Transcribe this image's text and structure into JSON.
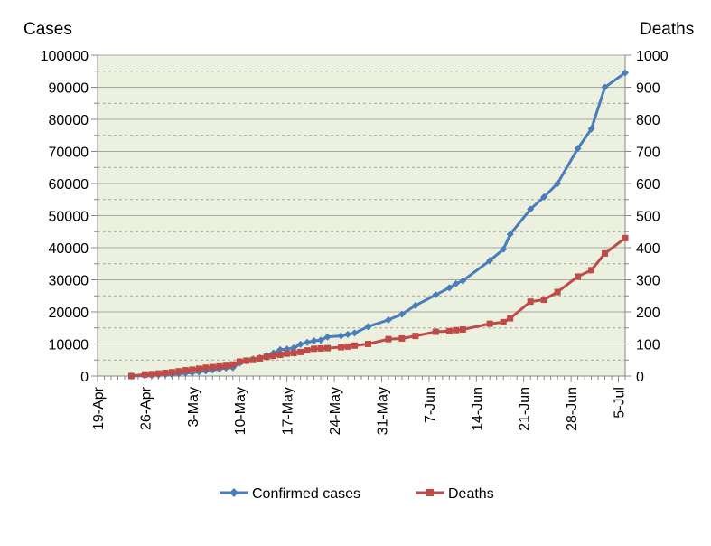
{
  "chart_data": {
    "type": "line",
    "left_axis_title": "Cases",
    "right_axis_title": "Deaths",
    "left_ylim": [
      0,
      100000
    ],
    "right_ylim": [
      0,
      1000
    ],
    "xlim": [
      "19-Apr",
      "6-Jul"
    ],
    "x_tick_labels": [
      "19-Apr",
      "26-Apr",
      "3-May",
      "10-May",
      "17-May",
      "24-May",
      "31-May",
      "7-Jun",
      "14-Jun",
      "21-Jun",
      "28-Jun",
      "5-Jul"
    ],
    "left_tick_labels": [
      "0",
      "10000",
      "20000",
      "30000",
      "40000",
      "50000",
      "60000",
      "70000",
      "80000",
      "90000",
      "100000"
    ],
    "right_tick_labels": [
      "0",
      "100",
      "200",
      "300",
      "400",
      "500",
      "600",
      "700",
      "800",
      "900",
      "1000"
    ],
    "grid": true,
    "legend_position": "bottom",
    "plot_background": "#ebf1de",
    "x": [
      "24-Apr",
      "26-Apr",
      "27-Apr",
      "28-Apr",
      "29-Apr",
      "30-Apr",
      "1-May",
      "2-May",
      "3-May",
      "4-May",
      "5-May",
      "6-May",
      "7-May",
      "8-May",
      "9-May",
      "10-May",
      "11-May",
      "12-May",
      "13-May",
      "14-May",
      "15-May",
      "16-May",
      "17-May",
      "18-May",
      "19-May",
      "20-May",
      "21-May",
      "22-May",
      "23-May",
      "25-May",
      "26-May",
      "27-May",
      "29-May",
      "1-Jun",
      "3-Jun",
      "5-Jun",
      "8-Jun",
      "10-Jun",
      "11-Jun",
      "12-Jun",
      "16-Jun",
      "18-Jun",
      "19-Jun",
      "22-Jun",
      "24-Jun",
      "26-Jun",
      "29-Jun",
      "1-Jul",
      "3-Jul",
      "6-Jul"
    ],
    "series": [
      {
        "name": "Confirmed cases",
        "axis": "left",
        "color": "#4a7ebb",
        "marker": "diamond",
        "values": [
          0,
          100,
          200,
          300,
          400,
          500,
          700,
          900,
          1100,
          1300,
          1600,
          1900,
          2200,
          2500,
          2600,
          4000,
          4800,
          5300,
          5700,
          6400,
          7200,
          8200,
          8400,
          8800,
          9900,
          10500,
          11000,
          11200,
          12200,
          12500,
          13000,
          13400,
          15400,
          17500,
          19300,
          22000,
          25300,
          27500,
          28800,
          29700,
          36000,
          39500,
          44200,
          52000,
          55800,
          60000,
          70900,
          77000,
          90000,
          94500
        ]
      },
      {
        "name": "Deaths",
        "axis": "right",
        "color": "#be4b48",
        "marker": "square",
        "values": [
          0,
          5,
          6,
          8,
          10,
          12,
          15,
          18,
          20,
          23,
          26,
          28,
          30,
          32,
          36,
          45,
          48,
          50,
          55,
          60,
          63,
          66,
          70,
          72,
          75,
          80,
          85,
          86,
          87,
          90,
          92,
          95,
          100,
          115,
          117,
          125,
          138,
          140,
          143,
          145,
          163,
          168,
          180,
          232,
          238,
          262,
          310,
          330,
          382,
          430
        ]
      }
    ]
  }
}
